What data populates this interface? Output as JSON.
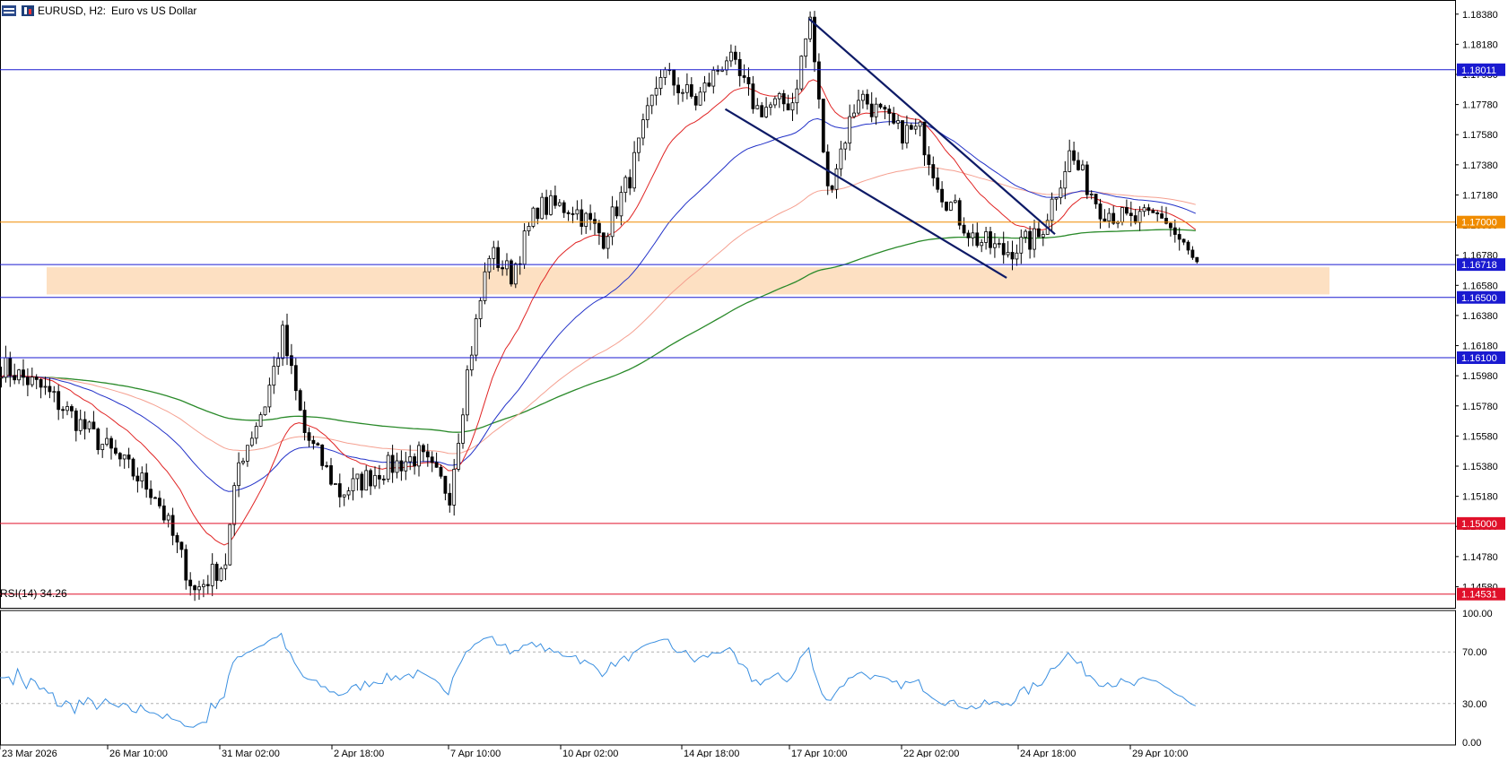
{
  "header": {
    "symbol": "EURUSD, H2:",
    "description": "Euro vs US Dollar"
  },
  "rsi": {
    "label": "RSI(14) 34.26",
    "levels": [
      70,
      30
    ],
    "scale_labels": [
      "100.00",
      "70.00",
      "30.00",
      "0.00"
    ]
  },
  "colors": {
    "up": "#000000",
    "down": "#000000",
    "wick": "#000000",
    "ema_fast": "#e02424",
    "ema_mid": "#2231c8",
    "ema_slow": "#f5a090",
    "ema_long": "#2a8a2a",
    "trendline": "#0d1a66",
    "zone": "#fde0c2",
    "rsi": "#3a8fe0"
  },
  "chart_data": {
    "type": "candlestick",
    "symbol": "EURUSD",
    "timeframe": "H2",
    "ylim": [
      1.1444,
      1.1845
    ],
    "y_ticks": [
      "1.18380",
      "1.18180",
      "1.17980",
      "1.17780",
      "1.17580",
      "1.17380",
      "1.17180",
      "1.16980",
      "1.16780",
      "1.16580",
      "1.16380",
      "1.16180",
      "1.15980",
      "1.15780",
      "1.15580",
      "1.15380",
      "1.15180",
      "1.14980",
      "1.14780",
      "1.14580"
    ],
    "x_ticks": [
      "23 Mar 2026",
      "26 Mar 10:00",
      "31 Mar 02:00",
      "2 Apr 18:00",
      "7 Apr 10:00",
      "10 Apr 02:00",
      "14 Apr 18:00",
      "17 Apr 10:00",
      "22 Apr 02:00",
      "24 Apr 18:00",
      "29 Apr 10:00"
    ],
    "price_levels": [
      {
        "price": 1.18011,
        "label": "1.18011",
        "color": "#1a1ad0"
      },
      {
        "price": 1.17,
        "label": "1.17000",
        "color": "#f08c00"
      },
      {
        "price": 1.16718,
        "label": "1.16718",
        "color": "#1a1ad0"
      },
      {
        "price": 1.165,
        "label": "1.16500",
        "color": "#1a1ad0"
      },
      {
        "price": 1.161,
        "label": "1.16100",
        "color": "#1a1ad0"
      },
      {
        "price": 1.15,
        "label": "1.15000",
        "color": "#e0102a"
      },
      {
        "price": 1.14531,
        "label": "1.14531",
        "color": "#e0102a"
      }
    ],
    "zone": {
      "from": 1.1652,
      "to": 1.167
    },
    "anchors": [
      [
        0,
        1.1605
      ],
      [
        10,
        1.1588
      ],
      [
        22,
        1.1555
      ],
      [
        35,
        1.152
      ],
      [
        44,
        1.1455
      ],
      [
        51,
        1.1475
      ],
      [
        54,
        1.154
      ],
      [
        60,
        1.158
      ],
      [
        64,
        1.1625
      ],
      [
        69,
        1.156
      ],
      [
        77,
        1.152
      ],
      [
        86,
        1.1535
      ],
      [
        95,
        1.1545
      ],
      [
        102,
        1.152
      ],
      [
        106,
        1.16
      ],
      [
        111,
        1.168
      ],
      [
        116,
        1.1665
      ],
      [
        122,
        1.171
      ],
      [
        130,
        1.171
      ],
      [
        137,
        1.169
      ],
      [
        143,
        1.173
      ],
      [
        150,
        1.18
      ],
      [
        158,
        1.178
      ],
      [
        165,
        1.181
      ],
      [
        172,
        1.1775
      ],
      [
        180,
        1.178
      ],
      [
        184,
        1.1835
      ],
      [
        188,
        1.172
      ],
      [
        195,
        1.1785
      ],
      [
        204,
        1.176
      ],
      [
        209,
        1.176
      ],
      [
        214,
        1.172
      ],
      [
        221,
        1.169
      ],
      [
        228,
        1.168
      ],
      [
        236,
        1.169
      ],
      [
        243,
        1.1745
      ],
      [
        250,
        1.171
      ],
      [
        257,
        1.17
      ],
      [
        264,
        1.1705
      ],
      [
        272,
        1.167
      ]
    ],
    "n_bars": 273,
    "ema_fast_final": 1.1695,
    "ema_mid_final": 1.1705,
    "ema_slow_final": 1.1712,
    "ema_long_final": 1.17,
    "trendlines": [
      {
        "from": [
          184,
          1.1835
        ],
        "to": [
          240,
          1.1692
        ]
      },
      {
        "from": [
          165,
          1.1775
        ],
        "to": [
          229,
          1.1663
        ]
      }
    ]
  }
}
